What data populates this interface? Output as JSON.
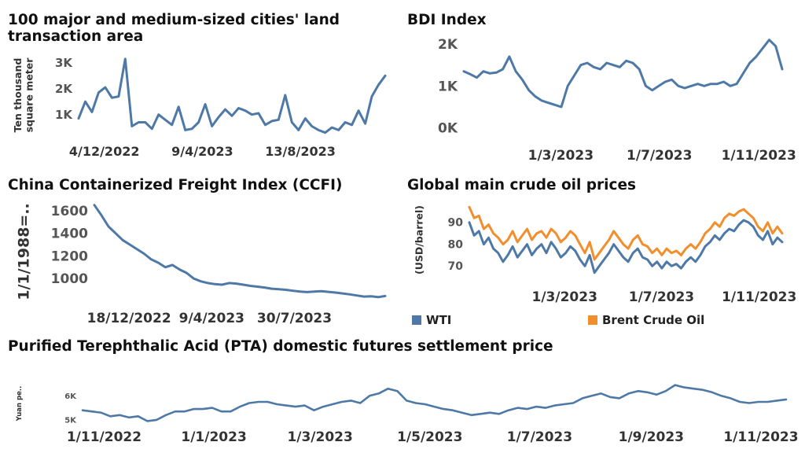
{
  "colors": {
    "wti": "#4e79a7",
    "brent": "#f28e2b",
    "line": "#4e79a7"
  },
  "chart_data": [
    {
      "id": "land",
      "type": "line",
      "title": "100 major and medium-sized cities' land transaction area",
      "ylabel": "Ten thousand square meter",
      "ylim": [
        200,
        3300
      ],
      "yticks": [
        1000,
        2000,
        3000
      ],
      "ytick_labels": [
        "1K",
        "2K",
        "3K"
      ],
      "x_start": "2022-11-01",
      "x_end": "2023-11-30",
      "xticks": [
        "2022-12-04",
        "2023-04-09",
        "2023-08-13"
      ],
      "xtick_labels": [
        "4/12/2022",
        "9/4/2023",
        "13/8/2023"
      ],
      "series": [
        {
          "values": [
            850,
            1500,
            1100,
            1850,
            2050,
            1650,
            1700,
            3150,
            550,
            700,
            700,
            450,
            1000,
            800,
            600,
            1300,
            400,
            450,
            700,
            1400,
            550,
            900,
            1200,
            950,
            1250,
            1150,
            1000,
            1050,
            600,
            750,
            800,
            1750,
            700,
            400,
            850,
            550,
            400,
            300,
            500,
            400,
            700,
            600,
            1150,
            650,
            1700,
            2150,
            2500
          ]
        }
      ]
    },
    {
      "id": "bdi",
      "type": "line",
      "title": "BDI Index",
      "ylim": [
        -100,
        2150
      ],
      "yticks": [
        0,
        1000,
        2000
      ],
      "ytick_labels": [
        "0K",
        "1K",
        "2K"
      ],
      "x_start": "2022-11-01",
      "x_end": "2023-11-30",
      "xticks": [
        "2023-03-01",
        "2023-07-01",
        "2023-11-01"
      ],
      "xtick_labels": [
        "1/3/2023",
        "1/7/2023",
        "1/11/2023"
      ],
      "series": [
        {
          "values": [
            1350,
            1280,
            1200,
            1350,
            1300,
            1320,
            1400,
            1700,
            1350,
            1150,
            900,
            750,
            650,
            600,
            550,
            500,
            1000,
            1250,
            1500,
            1550,
            1450,
            1400,
            1550,
            1500,
            1450,
            1600,
            1550,
            1400,
            1000,
            900,
            1000,
            1100,
            1150,
            1000,
            950,
            1000,
            1050,
            1000,
            1050,
            1050,
            1100,
            1000,
            1050,
            1300,
            1550,
            1700,
            1900,
            2100,
            1950,
            1400
          ]
        }
      ]
    },
    {
      "id": "ccfi",
      "type": "line",
      "title": "China Containerized Freight Index (CCFI)",
      "ylabel": "1/1/1988=..",
      "ylim": [
        820,
        1690
      ],
      "yticks": [
        1000,
        1200,
        1400,
        1600
      ],
      "ytick_labels": [
        "1000",
        "1200",
        "1400",
        "1600"
      ],
      "x_start": "2022-11-01",
      "x_end": "2023-11-30",
      "xticks": [
        "2022-12-18",
        "2023-04-09",
        "2023-07-30"
      ],
      "xtick_labels": [
        "18/12/2022",
        "9/4/2023",
        "30/7/2023"
      ],
      "series": [
        {
          "values": [
            1650,
            1560,
            1460,
            1400,
            1340,
            1300,
            1260,
            1220,
            1170,
            1140,
            1100,
            1120,
            1080,
            1050,
            1000,
            975,
            960,
            950,
            945,
            960,
            955,
            945,
            935,
            928,
            920,
            910,
            905,
            900,
            892,
            885,
            880,
            885,
            888,
            882,
            876,
            868,
            860,
            850,
            840,
            842,
            835,
            845
          ]
        }
      ]
    },
    {
      "id": "oil",
      "type": "line",
      "title": "Global main crude oil prices",
      "ylabel": "(USD/barrel)",
      "ylim": [
        64,
        100
      ],
      "yticks": [
        70,
        80,
        90
      ],
      "ytick_labels": [
        "70",
        "80",
        "90"
      ],
      "x_start": "2022-11-01",
      "x_end": "2023-11-30",
      "xticks": [
        "2023-03-01",
        "2023-07-01",
        "2023-11-01"
      ],
      "xtick_labels": [
        "1/3/2023",
        "1/7/2023",
        "1/11/2023"
      ],
      "legend": [
        "WTI",
        "Brent Crude Oil"
      ],
      "series": [
        {
          "name": "WTI",
          "values": [
            90,
            84,
            86,
            80,
            83,
            78,
            76,
            72,
            75,
            79,
            74,
            77,
            80,
            75,
            78,
            80,
            76,
            81,
            78,
            74,
            76,
            79,
            77,
            73,
            70,
            75,
            67,
            70,
            73,
            76,
            80,
            77,
            74,
            72,
            76,
            78,
            74,
            73,
            70,
            72,
            69,
            72,
            70,
            71,
            69,
            72,
            74,
            72,
            75,
            79,
            81,
            84,
            82,
            85,
            87,
            86,
            89,
            91,
            90,
            88,
            84,
            82,
            86,
            80,
            83,
            81
          ]
        },
        {
          "name": "Brent Crude Oil",
          "values": [
            97,
            92,
            93,
            87,
            89,
            85,
            83,
            80,
            82,
            86,
            81,
            84,
            87,
            82,
            85,
            86,
            83,
            87,
            85,
            81,
            83,
            86,
            84,
            80,
            76,
            81,
            73,
            76,
            79,
            82,
            86,
            83,
            80,
            78,
            82,
            84,
            80,
            79,
            76,
            78,
            75,
            78,
            76,
            77,
            75,
            78,
            80,
            78,
            81,
            85,
            87,
            90,
            88,
            92,
            94,
            93,
            95,
            96,
            94,
            92,
            88,
            86,
            90,
            85,
            88,
            85
          ]
        }
      ]
    },
    {
      "id": "pta",
      "type": "line",
      "title": "Purified Terephthalic Acid (PTA) domestic futures settlement price",
      "ylabel": "Yuan pe..",
      "ylim": [
        4800,
        6600
      ],
      "yticks": [
        5000,
        6000
      ],
      "ytick_labels": [
        "5K",
        "6K"
      ],
      "x_start": "2022-10-20",
      "x_end": "2023-11-15",
      "xticks": [
        "2022-11-01",
        "2023-01-01",
        "2023-03-01",
        "2023-05-01",
        "2023-07-01",
        "2023-09-01",
        "2023-11-01"
      ],
      "xtick_labels": [
        "1/11/2022",
        "1/1/2023",
        "1/3/2023",
        "1/5/2023",
        "1/7/2023",
        "1/9/2023",
        "1/11/2023"
      ],
      "series": [
        {
          "values": [
            5400,
            5350,
            5300,
            5150,
            5200,
            5100,
            5150,
            4950,
            5000,
            5200,
            5350,
            5350,
            5450,
            5450,
            5500,
            5350,
            5350,
            5550,
            5700,
            5750,
            5750,
            5650,
            5600,
            5550,
            5600,
            5400,
            5550,
            5650,
            5750,
            5800,
            5700,
            6000,
            6100,
            6300,
            6200,
            5800,
            5700,
            5650,
            5550,
            5450,
            5400,
            5300,
            5200,
            5250,
            5300,
            5250,
            5400,
            5500,
            5450,
            5550,
            5500,
            5600,
            5650,
            5700,
            5900,
            6000,
            6100,
            5950,
            5900,
            6100,
            6200,
            6150,
            6050,
            6200,
            6450,
            6350,
            6300,
            6250,
            6150,
            6000,
            5900,
            5750,
            5700,
            5750,
            5750,
            5800,
            5850
          ]
        }
      ]
    }
  ]
}
